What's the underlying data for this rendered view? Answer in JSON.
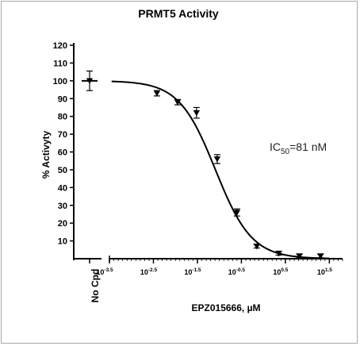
{
  "chart_data": {
    "type": "scatter",
    "title": "PRMT5 Activity",
    "xlabel": "EPZ015666, µM",
    "ylabel": "% Activyty",
    "x_scale": "log10",
    "xlim": [
      -3.5,
      1.8
    ],
    "ylim": [
      0,
      120
    ],
    "yticks": [
      10,
      20,
      30,
      40,
      50,
      60,
      70,
      80,
      90,
      100,
      110,
      120
    ],
    "xticks": [
      {
        "base": "10",
        "exp": "-3.5",
        "value": -3.5
      },
      {
        "base": "10",
        "exp": "-2.5",
        "value": -2.5
      },
      {
        "base": "10",
        "exp": "-1.5",
        "value": -1.5
      },
      {
        "base": "10",
        "exp": "-0.5",
        "value": -0.5
      },
      {
        "base": "10",
        "exp": "0.5",
        "value": 0.5
      },
      {
        "base": "10",
        "exp": "1.5",
        "value": 1.5
      }
    ],
    "control": {
      "label": "No Cpd",
      "y": 100,
      "err": 5.5
    },
    "points": [
      {
        "log_conc": -2.42,
        "y": 93,
        "err": 1.5
      },
      {
        "log_conc": -1.95,
        "y": 88,
        "err": 1.5
      },
      {
        "log_conc": -1.52,
        "y": 82,
        "err": 3.0
      },
      {
        "log_conc": -1.05,
        "y": 56,
        "err": 2.5
      },
      {
        "log_conc": -0.6,
        "y": 26,
        "err": 2.0
      },
      {
        "log_conc": -0.15,
        "y": 7,
        "err": 1.0
      },
      {
        "log_conc": 0.35,
        "y": 3,
        "err": 1.0
      },
      {
        "log_conc": 0.82,
        "y": 1.5,
        "err": 1.0
      },
      {
        "log_conc": 1.3,
        "y": 1.5,
        "err": 1.0
      }
    ],
    "fit": {
      "top": 100,
      "bottom": 0,
      "log_ic50": -1.09,
      "hill": 1.05
    },
    "annotation": {
      "prefix": "IC",
      "subscript": "50",
      "suffix": "=81 nM"
    },
    "grid": false,
    "marker": "triangle-down",
    "color": "#000000"
  }
}
